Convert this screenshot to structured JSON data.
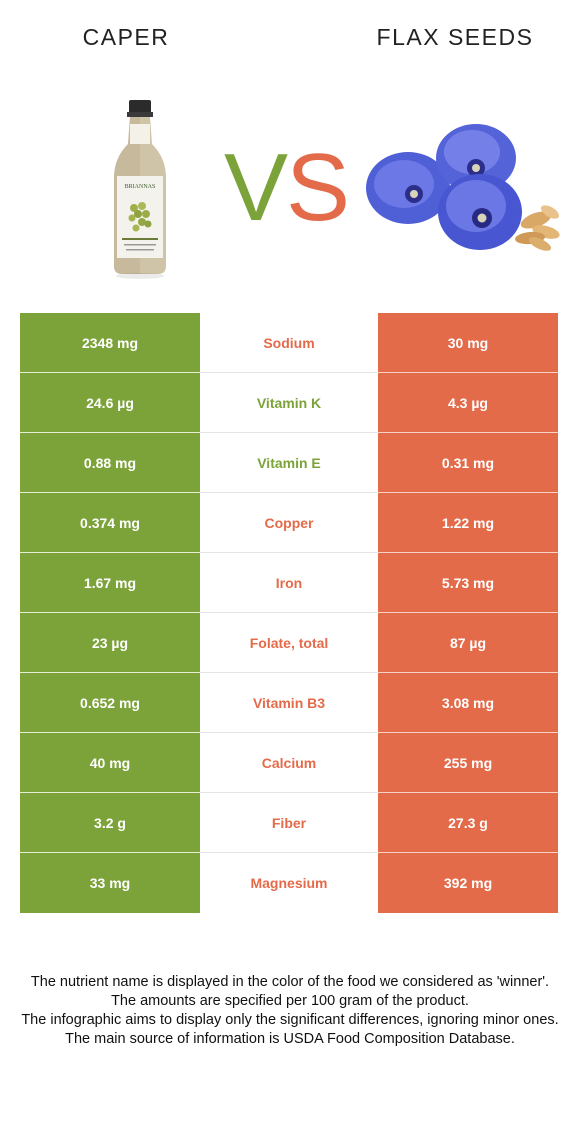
{
  "header": {
    "left_food": "CAPER",
    "right_food": "FLAX SEEDS",
    "vs_left": "V",
    "vs_right": "S",
    "bottle_label": "BRIANNAS"
  },
  "colors": {
    "left_accent": "#7ca33a",
    "right_accent": "#e46b4a"
  },
  "rows": [
    {
      "nutrient": "Sodium",
      "left": "2348 mg",
      "right": "30 mg",
      "winner": "right"
    },
    {
      "nutrient": "Vitamin K",
      "left": "24.6 µg",
      "right": "4.3 µg",
      "winner": "left"
    },
    {
      "nutrient": "Vitamin E",
      "left": "0.88 mg",
      "right": "0.31 mg",
      "winner": "left"
    },
    {
      "nutrient": "Copper",
      "left": "0.374 mg",
      "right": "1.22 mg",
      "winner": "right"
    },
    {
      "nutrient": "Iron",
      "left": "1.67 mg",
      "right": "5.73 mg",
      "winner": "right"
    },
    {
      "nutrient": "Folate, total",
      "left": "23 µg",
      "right": "87 µg",
      "winner": "right"
    },
    {
      "nutrient": "Vitamin B3",
      "left": "0.652 mg",
      "right": "3.08 mg",
      "winner": "right"
    },
    {
      "nutrient": "Calcium",
      "left": "40 mg",
      "right": "255 mg",
      "winner": "right"
    },
    {
      "nutrient": "Fiber",
      "left": "3.2 g",
      "right": "27.3 g",
      "winner": "right"
    },
    {
      "nutrient": "Magnesium",
      "left": "33 mg",
      "right": "392 mg",
      "winner": "right"
    }
  ],
  "footer": {
    "line1": "The nutrient name is displayed in the color of the food we considered as 'winner'.",
    "line2": "The amounts are specified per 100 gram of the product.",
    "line3": "The infographic aims to display only the significant differences, ignoring minor ones.",
    "line4": "The main source of information is USDA Food Composition Database."
  }
}
